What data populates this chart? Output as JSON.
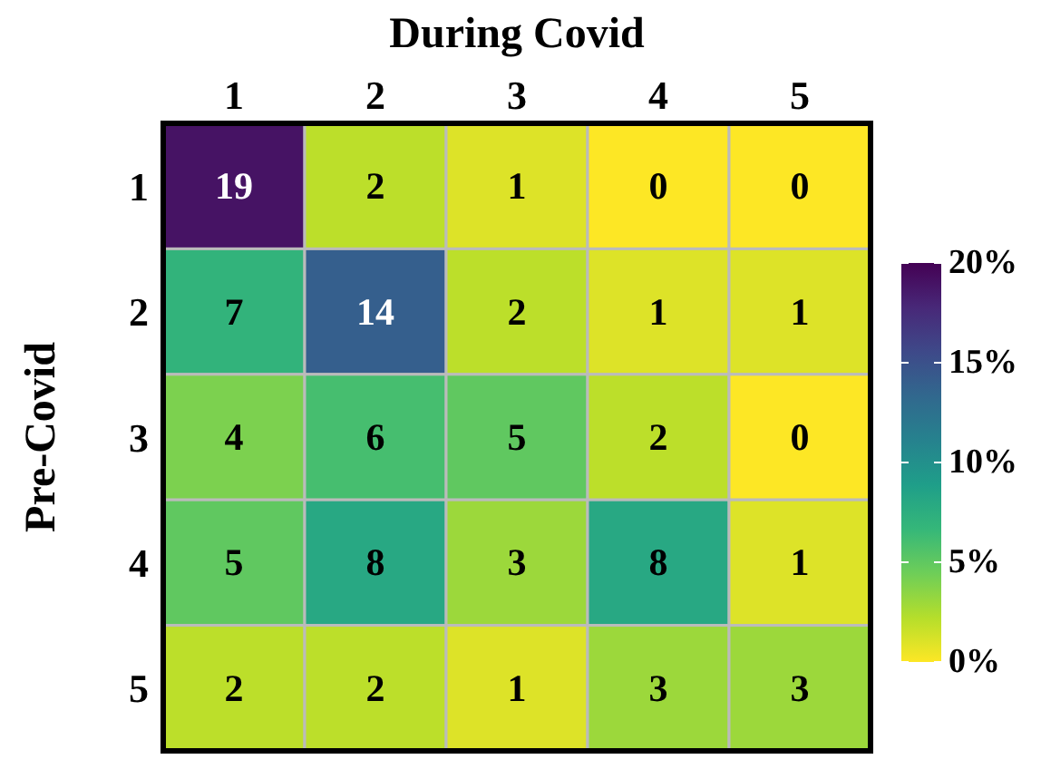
{
  "chart_data": {
    "type": "heatmap",
    "title": "During Covid",
    "ylabel": "Pre-Covid",
    "categories": [
      "1",
      "2",
      "3",
      "4",
      "5"
    ],
    "y_categories": [
      "1",
      "2",
      "3",
      "4",
      "5"
    ],
    "cells": [
      [
        19,
        2,
        1,
        0,
        0
      ],
      [
        7,
        14,
        2,
        1,
        1
      ],
      [
        4,
        6,
        5,
        2,
        0
      ],
      [
        5,
        8,
        3,
        8,
        1
      ],
      [
        2,
        2,
        1,
        3,
        3
      ]
    ],
    "data_labels": true,
    "clim": [
      0,
      20
    ],
    "cticks": [
      {
        "value": 0,
        "label": "0%"
      },
      {
        "value": 5,
        "label": "5%"
      },
      {
        "value": 10,
        "label": "10%"
      },
      {
        "value": 15,
        "label": "15%"
      },
      {
        "value": 20,
        "label": "20%"
      }
    ]
  }
}
